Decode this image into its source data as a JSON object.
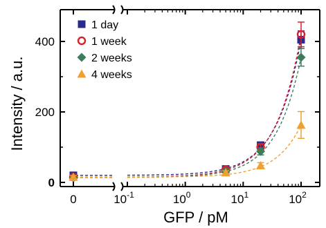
{
  "chart_data": {
    "type": "scatter",
    "xlabel": "GFP / pM",
    "ylabel": "Intensity  / a.u.",
    "x_scale": "broken: linear segment at 0, then log10",
    "x_ticks": [
      {
        "value": 0,
        "label": "0"
      },
      {
        "value": 0.1,
        "label": "10",
        "exp": "-1"
      },
      {
        "value": 1,
        "label": "10",
        "exp": "0"
      },
      {
        "value": 10,
        "label": "10",
        "exp": "1"
      },
      {
        "value": 100,
        "label": "10",
        "exp": "2"
      }
    ],
    "y_ticks": [
      {
        "value": 0,
        "label": "0"
      },
      {
        "value": 200,
        "label": "200"
      },
      {
        "value": 400,
        "label": "400"
      }
    ],
    "ylim": [
      -60,
      480
    ],
    "log_xlim": [
      0.1,
      250
    ],
    "legend_position": "top-left",
    "series": [
      {
        "name": "1 day",
        "color": "#2a2a8c",
        "marker": "square",
        "x": [
          0,
          5,
          20,
          100
        ],
        "y": [
          20,
          38,
          105,
          405
        ],
        "err": [
          4,
          5,
          10,
          25
        ]
      },
      {
        "name": "1 week",
        "color": "#d8202a",
        "marker": "circle-open",
        "x": [
          0,
          5,
          20,
          100
        ],
        "y": [
          15,
          36,
          100,
          420
        ],
        "err": [
          4,
          5,
          10,
          35
        ]
      },
      {
        "name": "2 weeks",
        "color": "#3c7c5a",
        "marker": "diamond",
        "x": [
          0,
          5,
          20,
          100
        ],
        "y": [
          14,
          32,
          88,
          355
        ],
        "err": [
          4,
          5,
          10,
          25
        ]
      },
      {
        "name": "4 weeks",
        "color": "#f0a030",
        "marker": "triangle",
        "x": [
          0,
          5,
          20,
          100
        ],
        "y": [
          15,
          28,
          48,
          163
        ],
        "err": [
          4,
          5,
          8,
          38
        ]
      }
    ]
  }
}
